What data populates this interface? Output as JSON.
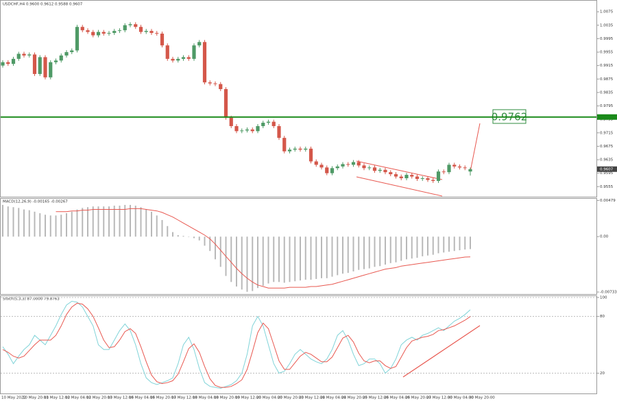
{
  "chart_data": [
    {
      "type": "candlestick",
      "title": "USDCHF,H4 0.9600 0.9612 0.9588 0.9607",
      "x": [
        "10 May 2022",
        null,
        null,
        null,
        "10 May 20:00",
        null,
        null,
        null,
        "11 May 12:00",
        null,
        null,
        null,
        "12 May 04:00",
        null,
        null,
        null,
        "12 May 20:00",
        null,
        null,
        null,
        "13 May 12:00",
        null,
        null,
        null,
        "16 May 04:00",
        null,
        null,
        null,
        "16 May 20:00",
        null,
        null,
        null,
        "17 May 12:00",
        null,
        null,
        null,
        "18 May 04:00",
        null,
        null,
        null,
        "18 May 20:00",
        null,
        null,
        null,
        "19 May 12:00",
        null,
        null,
        null,
        "20 May 04:00",
        null,
        null,
        null,
        "20 May 20:00",
        null,
        null,
        null,
        "23 May 12:00",
        null,
        null,
        null,
        "24 May 04:00",
        null,
        null,
        null,
        "24 May 20:00",
        null,
        null,
        null,
        "25 May 12:00",
        null,
        null,
        null,
        "26 May 04:00",
        null,
        null,
        null,
        "26 May 20:00",
        null,
        null,
        null,
        "27 May 12:00",
        null,
        null,
        null,
        "30 May 04:00",
        null,
        null,
        null,
        "30 May 20:00"
      ],
      "open": [
        0.9915,
        0.9925,
        0.992,
        0.9935,
        0.995,
        0.9945,
        0.9948,
        0.989,
        0.994,
        0.988,
        0.9925,
        0.993,
        0.9945,
        0.9955,
        0.996,
        1.003,
        1.002,
        1.0015,
        1.0005,
        1.0015,
        1.001,
        1.0012,
        1.0018,
        1.002,
        1.0035,
        1.0038,
        1.003,
        1.0015,
        1.0018,
        1.0012,
        1.001,
        0.9975,
        0.9935,
        0.993,
        0.9935,
        0.994,
        0.9935,
        0.9975,
        0.9985,
        0.9865,
        0.9862,
        0.986,
        0.9845,
        0.976,
        0.9735,
        0.972,
        0.9722,
        0.9725,
        0.972,
        0.9735,
        0.9745,
        0.9748,
        0.9735,
        0.97,
        0.966,
        0.9665,
        0.9668,
        0.9665,
        0.9668,
        0.963,
        0.962,
        0.9612,
        0.9595,
        0.961,
        0.9615,
        0.9622,
        0.962,
        0.9628,
        0.9618,
        0.961,
        0.9612,
        0.9602,
        0.9605,
        0.9598,
        0.9592,
        0.9585,
        0.958,
        0.959,
        0.9585,
        0.9578,
        0.958,
        0.9575,
        0.9572,
        0.96,
        0.9598,
        0.962,
        0.9615,
        0.9612,
        0.96
      ],
      "high": [
        0.9931,
        0.9931,
        0.9941,
        0.9956,
        0.9956,
        0.9954,
        0.9954,
        0.9946,
        0.9946,
        0.9931,
        0.9936,
        0.9951,
        0.9961,
        0.9966,
        1.0036,
        1.0036,
        1.0026,
        1.0021,
        1.0021,
        1.0021,
        1.0018,
        1.0024,
        1.0026,
        1.0041,
        1.0044,
        1.0044,
        1.0036,
        1.0024,
        1.0024,
        1.0018,
        1.0016,
        0.9981,
        0.9941,
        0.9941,
        0.9946,
        0.9946,
        0.9981,
        0.9991,
        0.9991,
        0.9871,
        0.9868,
        0.9866,
        0.9851,
        0.9766,
        0.9741,
        0.9728,
        0.9731,
        0.9731,
        0.9741,
        0.9751,
        0.9754,
        0.9754,
        0.9741,
        0.9706,
        0.9671,
        0.9674,
        0.9674,
        0.9674,
        0.9674,
        0.9636,
        0.9626,
        0.9618,
        0.9616,
        0.9621,
        0.9628,
        0.9628,
        0.9634,
        0.9634,
        0.9624,
        0.9618,
        0.9618,
        0.9611,
        0.9611,
        0.9604,
        0.9598,
        0.9591,
        0.9596,
        0.9596,
        0.9591,
        0.9586,
        0.9586,
        0.9581,
        0.9606,
        0.9606,
        0.9626,
        0.9626,
        0.9621,
        0.9618,
        0.9612
      ],
      "low": [
        0.9909,
        0.9914,
        0.9914,
        0.9929,
        0.9939,
        0.9939,
        0.9884,
        0.9884,
        0.9874,
        0.9874,
        0.9919,
        0.9924,
        0.9939,
        0.9949,
        0.9954,
        1.0014,
        1.0009,
        0.9999,
        0.9999,
        1.0004,
        1.0004,
        1.0006,
        1.0012,
        1.0014,
        1.0029,
        1.0024,
        1.0009,
        1.0009,
        1.0006,
        1.0004,
        0.9969,
        0.9929,
        0.9924,
        0.9924,
        0.9929,
        0.9929,
        0.9929,
        0.9969,
        0.9859,
        0.9856,
        0.9854,
        0.9839,
        0.9754,
        0.9729,
        0.9714,
        0.9714,
        0.9716,
        0.9714,
        0.9714,
        0.9729,
        0.9739,
        0.9729,
        0.9694,
        0.9654,
        0.9654,
        0.9659,
        0.9659,
        0.9659,
        0.9624,
        0.9614,
        0.9606,
        0.9589,
        0.9589,
        0.9604,
        0.9609,
        0.9614,
        0.9614,
        0.9612,
        0.9604,
        0.9604,
        0.9596,
        0.9596,
        0.9592,
        0.9586,
        0.9579,
        0.9574,
        0.9574,
        0.9579,
        0.9572,
        0.9572,
        0.9569,
        0.9566,
        0.9566,
        0.9592,
        0.9592,
        0.9609,
        0.9606,
        0.9604,
        0.9588
      ],
      "close": [
        0.9925,
        0.992,
        0.9935,
        0.995,
        0.9945,
        0.9948,
        0.989,
        0.994,
        0.988,
        0.9925,
        0.993,
        0.9945,
        0.9955,
        0.996,
        1.003,
        1.002,
        1.0015,
        1.0005,
        1.0015,
        1.001,
        1.0012,
        1.0018,
        1.002,
        1.0035,
        1.0038,
        1.003,
        1.0015,
        1.0018,
        1.0012,
        1.001,
        0.9975,
        0.9935,
        0.993,
        0.9935,
        0.994,
        0.9935,
        0.9975,
        0.9985,
        0.9865,
        0.9862,
        0.986,
        0.9845,
        0.976,
        0.9735,
        0.972,
        0.9722,
        0.9725,
        0.972,
        0.9735,
        0.9745,
        0.9748,
        0.9735,
        0.97,
        0.966,
        0.9665,
        0.9668,
        0.9665,
        0.9668,
        0.963,
        0.962,
        0.9612,
        0.9595,
        0.961,
        0.9615,
        0.9622,
        0.962,
        0.9628,
        0.9618,
        0.961,
        0.9612,
        0.9602,
        0.9605,
        0.9598,
        0.9592,
        0.9585,
        0.958,
        0.959,
        0.9585,
        0.9578,
        0.958,
        0.9575,
        0.9572,
        0.96,
        0.9598,
        0.962,
        0.9615,
        0.9612,
        0.961,
        0.9607
      ],
      "up_color": "#4f9a66",
      "down_color": "#d4574a",
      "ylim": [
        0.9525,
        1.011
      ],
      "yticks": [
        1.0075,
        1.0035,
        0.9995,
        0.9955,
        0.9915,
        0.9875,
        0.9835,
        0.9795,
        0.9755,
        0.9715,
        0.9675,
        0.9635,
        0.9595,
        0.9555
      ],
      "level": 0.9762,
      "level_color": "#1a8a1a",
      "level_label": "0.9762",
      "last_price": 0.9607
    },
    {
      "type": "macd",
      "title": "MACD(12,26,9) -0.00165 -0.00267",
      "values": [
        0.0042,
        0.004,
        0.0039,
        0.0038,
        0.0036,
        0.0035,
        0.0033,
        0.0031,
        0.0029,
        0.0028,
        0.0028,
        0.0029,
        0.0031,
        0.0033,
        0.0036,
        0.0038,
        0.0039,
        0.004,
        0.004,
        0.004,
        0.004,
        0.0041,
        0.0041,
        0.0042,
        0.0042,
        0.0041,
        0.0039,
        0.0036,
        0.0033,
        0.0028,
        0.0022,
        0.0014,
        0.0006,
        0.0002,
        0.0001,
        0.0,
        -0.0002,
        -0.0005,
        -0.0012,
        -0.0019,
        -0.003,
        -0.004,
        -0.0052,
        -0.006,
        -0.0066,
        -0.007,
        -0.0073,
        -0.0072,
        -0.0068,
        -0.0065,
        -0.0062,
        -0.006,
        -0.006,
        -0.0061,
        -0.006,
        -0.0059,
        -0.0058,
        -0.0057,
        -0.0057,
        -0.0056,
        -0.0055,
        -0.0055,
        -0.0053,
        -0.0051,
        -0.0049,
        -0.0048,
        -0.0046,
        -0.0044,
        -0.0043,
        -0.0042,
        -0.004,
        -0.0039,
        -0.0037,
        -0.0035,
        -0.0034,
        -0.0032,
        -0.003,
        -0.0029,
        -0.0028,
        -0.0026,
        -0.0025,
        -0.0024,
        -0.0022,
        -0.0021,
        -0.002,
        -0.0019,
        -0.0018,
        -0.0017,
        -0.00165
      ],
      "signal": [
        null,
        null,
        null,
        null,
        null,
        null,
        null,
        null,
        null,
        null,
        0.0033,
        0.0033,
        0.0033,
        0.0034,
        0.0034,
        0.0035,
        0.0035,
        0.0036,
        0.0036,
        0.0036,
        0.0036,
        0.0036,
        0.0036,
        0.0036,
        0.0037,
        0.0037,
        0.0037,
        0.0036,
        0.0035,
        0.0034,
        0.0032,
        0.0029,
        0.0026,
        0.0022,
        0.0018,
        0.0014,
        0.001,
        0.0006,
        0.0002,
        -0.0003,
        -0.001,
        -0.0018,
        -0.0026,
        -0.0034,
        -0.0042,
        -0.0049,
        -0.0055,
        -0.006,
        -0.0064,
        -0.0066,
        -0.0068,
        -0.0068,
        -0.0068,
        -0.0068,
        -0.0067,
        -0.0067,
        -0.0067,
        -0.0067,
        -0.0066,
        -0.0066,
        -0.0065,
        -0.0064,
        -0.0063,
        -0.0061,
        -0.0059,
        -0.0057,
        -0.0055,
        -0.0053,
        -0.0051,
        -0.0049,
        -0.0047,
        -0.0045,
        -0.0043,
        -0.0042,
        -0.0041,
        -0.0039,
        -0.0038,
        -0.0037,
        -0.0036,
        -0.0035,
        -0.0034,
        -0.0033,
        -0.0032,
        -0.0031,
        -0.003,
        -0.0029,
        -0.0028,
        -0.0027,
        -0.00267
      ],
      "hist_color": "#b8b8b8",
      "signal_color": "#e8574f",
      "ylim": [
        -0.0076,
        0.0051
      ],
      "yticks": [
        0.00479,
        {
          "value": 0,
          "label": "0.00"
        },
        -0.00733
      ]
    },
    {
      "type": "line",
      "title": "Stoch(5,3,3) 87.0000 79.8763",
      "values": [
        48,
        40,
        30,
        38,
        45,
        50,
        60,
        55,
        50,
        60,
        70,
        82,
        92,
        96,
        95,
        90,
        80,
        70,
        50,
        45,
        45,
        55,
        65,
        72,
        65,
        50,
        30,
        15,
        10,
        8,
        10,
        12,
        15,
        30,
        50,
        58,
        45,
        25,
        10,
        6,
        5,
        4,
        6,
        8,
        12,
        20,
        40,
        70,
        80,
        70,
        50,
        30,
        20,
        22,
        30,
        40,
        45,
        40,
        35,
        32,
        30,
        35,
        45,
        60,
        65,
        55,
        40,
        28,
        30,
        35,
        35,
        30,
        20,
        25,
        35,
        50,
        55,
        58,
        55,
        60,
        62,
        65,
        68,
        65,
        70,
        75,
        78,
        82,
        87
      ],
      "signal": [
        45,
        42,
        38,
        36,
        38,
        44,
        50,
        55,
        55,
        55,
        60,
        70,
        82,
        90,
        94,
        93,
        88,
        80,
        68,
        55,
        47,
        48,
        55,
        64,
        67,
        62,
        48,
        32,
        18,
        11,
        9,
        10,
        12,
        19,
        32,
        46,
        51,
        42,
        27,
        14,
        7,
        5,
        5,
        6,
        9,
        13,
        24,
        43,
        63,
        73,
        67,
        50,
        33,
        24,
        24,
        31,
        38,
        42,
        40,
        36,
        32,
        32,
        37,
        47,
        57,
        60,
        53,
        41,
        33,
        31,
        33,
        33,
        28,
        25,
        27,
        37,
        47,
        54,
        56,
        58,
        59,
        61,
        65,
        66,
        68,
        70,
        73,
        76,
        79.8763
      ],
      "color": "#7fd3d8",
      "signal_color": "#e8574f",
      "ylim": [
        0,
        100
      ],
      "yticks": [
        100,
        80,
        20
      ],
      "grid": true
    }
  ]
}
